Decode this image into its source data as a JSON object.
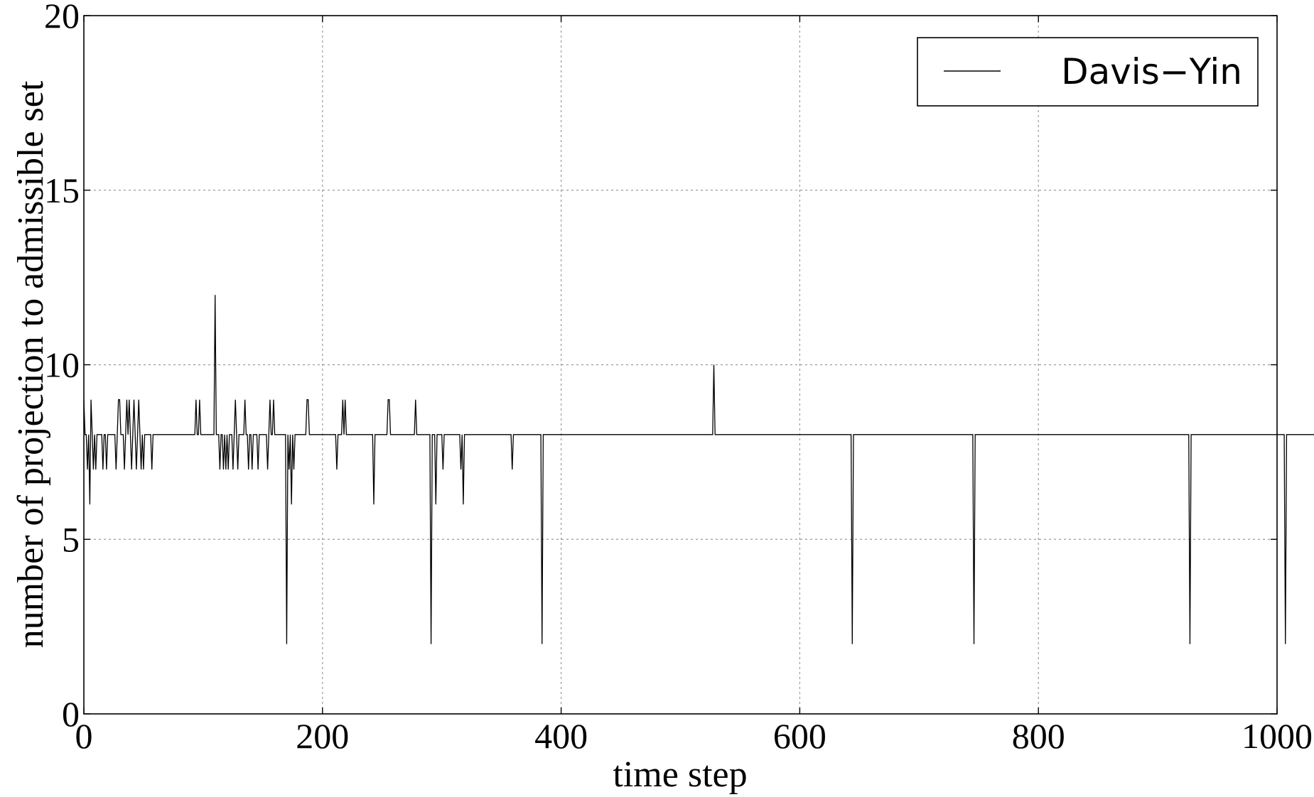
{
  "chart_data": {
    "type": "line",
    "title": "",
    "xlabel": "time step",
    "ylabel": "number of projection to admissible set",
    "xlim": [
      0,
      1000
    ],
    "ylim": [
      0,
      20
    ],
    "xticks": [
      0,
      200,
      400,
      600,
      800,
      1000
    ],
    "xtick_labels": [
      "0",
      "200",
      "400",
      "600",
      "800",
      "1000"
    ],
    "yticks": [
      0,
      5,
      10,
      15,
      20
    ],
    "ytick_labels": [
      "0",
      "5",
      "10",
      "15",
      "20"
    ],
    "grid": true,
    "legend": {
      "placement": "top-right",
      "entries": [
        "Davis−Yin"
      ]
    },
    "series": [
      {
        "name": "Davis−Yin",
        "color": "#000000",
        "x_start": 0,
        "x_step": 1,
        "values": [
          9,
          8,
          8,
          7,
          8,
          6,
          9,
          8,
          7,
          8,
          7,
          8,
          8,
          8,
          8,
          8,
          7,
          8,
          8,
          7,
          8,
          8,
          8,
          8,
          8,
          8,
          8,
          7,
          8,
          9,
          9,
          8,
          8,
          8,
          7,
          8,
          9,
          8,
          9,
          8,
          7,
          8,
          9,
          8,
          7,
          8,
          9,
          8,
          7,
          8,
          7,
          8,
          8,
          8,
          8,
          8,
          8,
          7,
          8,
          8,
          8,
          8,
          8,
          8,
          8,
          8,
          8,
          8,
          8,
          8,
          8,
          8,
          8,
          8,
          8,
          8,
          8,
          8,
          8,
          8,
          8,
          8,
          8,
          8,
          8,
          8,
          8,
          8,
          8,
          8,
          8,
          8,
          8,
          8,
          9,
          8,
          8,
          9,
          8,
          8,
          8,
          8,
          8,
          8,
          8,
          8,
          8,
          8,
          8,
          8,
          12,
          8,
          8,
          8,
          7,
          8,
          8,
          7,
          8,
          7,
          8,
          7,
          8,
          8,
          8,
          7,
          8,
          9,
          8,
          7,
          8,
          8,
          8,
          8,
          8,
          9,
          8,
          8,
          7,
          8,
          8,
          7,
          8,
          8,
          8,
          8,
          7,
          8,
          8,
          8,
          8,
          8,
          8,
          8,
          7,
          8,
          9,
          8,
          8,
          9,
          8,
          8,
          8,
          8,
          8,
          8,
          8,
          8,
          8,
          8,
          2,
          8,
          7,
          8,
          6,
          8,
          7,
          8,
          8,
          8,
          8,
          8,
          8,
          8,
          8,
          8,
          8,
          9,
          9,
          8,
          8,
          8,
          8,
          8,
          8,
          8,
          8,
          8,
          8,
          8,
          8,
          8,
          8,
          8,
          8,
          8,
          8,
          8,
          8,
          8,
          8,
          8,
          7,
          8,
          8,
          8,
          8,
          9,
          8,
          9,
          8,
          8,
          8,
          8,
          8,
          8,
          8,
          8,
          8,
          8,
          8,
          8,
          8,
          8,
          8,
          8,
          8,
          8,
          8,
          8,
          8,
          8,
          8,
          6,
          8,
          8,
          8,
          8,
          8,
          8,
          8,
          8,
          8,
          8,
          8,
          9,
          9,
          8,
          8,
          8,
          8,
          8,
          8,
          8,
          8,
          8,
          8,
          8,
          8,
          8,
          8,
          8,
          8,
          8,
          8,
          8,
          8,
          8,
          9,
          8,
          8,
          8,
          8,
          8,
          8,
          8,
          8,
          8,
          8,
          8,
          8,
          2,
          8,
          8,
          8,
          6,
          8,
          8,
          8,
          8,
          8,
          7,
          8,
          8,
          8,
          8,
          8,
          8,
          8,
          8,
          8,
          8,
          8,
          8,
          8,
          8,
          7,
          8,
          6,
          8,
          8,
          8,
          8,
          8,
          8,
          8,
          8,
          8,
          8,
          8,
          8,
          8,
          8,
          8,
          8,
          8,
          8,
          8,
          8,
          8,
          8,
          8,
          8,
          8,
          8,
          8,
          8,
          8,
          8,
          8,
          8,
          8,
          8,
          8,
          8,
          8,
          8,
          8,
          8,
          7,
          8,
          8,
          8,
          8,
          8,
          8,
          8,
          8,
          8,
          8,
          8,
          8,
          8,
          8,
          8,
          8,
          8,
          8,
          8,
          8,
          8,
          8,
          8,
          8,
          2,
          8,
          8,
          8,
          8,
          8,
          8,
          8,
          8,
          8,
          8,
          8,
          8,
          8,
          8,
          8,
          8,
          8,
          8,
          8,
          8,
          8,
          8,
          8,
          8,
          8,
          8,
          8,
          8,
          8,
          8,
          8,
          8,
          8,
          8,
          8,
          8,
          8,
          8,
          8,
          8,
          8,
          8,
          8,
          8,
          8,
          8,
          8,
          8,
          8,
          8,
          8,
          8,
          8,
          8,
          8,
          8,
          8,
          8,
          8,
          8,
          8,
          8,
          8,
          8,
          8,
          8,
          8,
          8,
          8,
          8,
          8,
          8,
          8,
          8,
          8,
          8,
          8,
          8,
          8,
          8,
          8,
          8,
          8,
          8,
          8,
          8,
          8,
          8,
          8,
          8,
          8,
          8,
          8,
          8,
          8,
          8,
          8,
          8,
          8,
          8,
          8,
          8,
          8,
          8,
          8,
          8,
          8,
          8,
          8,
          8,
          8,
          8,
          8,
          8,
          8,
          8,
          8,
          8,
          8,
          8,
          8,
          8,
          8,
          8,
          8,
          8,
          8,
          8,
          8,
          8,
          8,
          8,
          8,
          8,
          8,
          8,
          8,
          8,
          8,
          8,
          8,
          8,
          8,
          10,
          8,
          8,
          8,
          8,
          8,
          8,
          8,
          8,
          8,
          8,
          8,
          8,
          8,
          8,
          8,
          8,
          8,
          8,
          8,
          8,
          8,
          8,
          8,
          8,
          8,
          8,
          8,
          8,
          8,
          8,
          8,
          8,
          8,
          8,
          8,
          8,
          8,
          8,
          8,
          8,
          8,
          8,
          8,
          8,
          8,
          8,
          8,
          8,
          8,
          8,
          8,
          8,
          8,
          8,
          8,
          8,
          8,
          8,
          8,
          8,
          8,
          8,
          8,
          8,
          8,
          8,
          8,
          8,
          8,
          8,
          8,
          8,
          8,
          8,
          8,
          8,
          8,
          8,
          8,
          8,
          8,
          8,
          8,
          8,
          8,
          8,
          8,
          8,
          8,
          8,
          8,
          8,
          8,
          8,
          8,
          8,
          8,
          8,
          8,
          8,
          8,
          8,
          8,
          8,
          8,
          8,
          8,
          8,
          8,
          8,
          8,
          8,
          8,
          8,
          8,
          2,
          8,
          8,
          8,
          8,
          8,
          8,
          8,
          8,
          8,
          8,
          8,
          8,
          8,
          8,
          8,
          8,
          8,
          8,
          8,
          8,
          8,
          8,
          8,
          8,
          8,
          8,
          8,
          8,
          8,
          8,
          8,
          8,
          8,
          8,
          8,
          8,
          8,
          8,
          8,
          8,
          8,
          8,
          8,
          8,
          8,
          8,
          8,
          8,
          8,
          8,
          8,
          8,
          8,
          8,
          8,
          8,
          8,
          8,
          8,
          8,
          8,
          8,
          8,
          8,
          8,
          8,
          8,
          8,
          8,
          8,
          8,
          8,
          8,
          8,
          8,
          8,
          8,
          8,
          8,
          8,
          8,
          8,
          8,
          8,
          8,
          8,
          8,
          8,
          8,
          8,
          8,
          8,
          8,
          8,
          8,
          8,
          8,
          8,
          8,
          8,
          8,
          2,
          8,
          8,
          8,
          8,
          8,
          8,
          8,
          8,
          8,
          8,
          8,
          8,
          8,
          8,
          8,
          8,
          8,
          8,
          8,
          8,
          8,
          8,
          8,
          8,
          8,
          8,
          8,
          8,
          8,
          8,
          8,
          8,
          8,
          8,
          8,
          8,
          8,
          8,
          8,
          8,
          8,
          8,
          8,
          8,
          8,
          8,
          8,
          8,
          8,
          8,
          8,
          8,
          8,
          8,
          8,
          8,
          8,
          8,
          8,
          8,
          8,
          8,
          8,
          8,
          8,
          8,
          8,
          8,
          8,
          8,
          8,
          8,
          8,
          8,
          8,
          8,
          8,
          8,
          8,
          8,
          8,
          8,
          8,
          8,
          8,
          8,
          8,
          8,
          8,
          8,
          8,
          8,
          8,
          8,
          8,
          8,
          8,
          8,
          8,
          8,
          8,
          8,
          8,
          8,
          8,
          8,
          8,
          8,
          8,
          8,
          8,
          8,
          8,
          8,
          8,
          8,
          8,
          8,
          8,
          8,
          8,
          8,
          8,
          8,
          8,
          8,
          8,
          8,
          8,
          8,
          8,
          8,
          8,
          8,
          8,
          8,
          8,
          8,
          8,
          8,
          8,
          8,
          8,
          8,
          8,
          8,
          8,
          8,
          8,
          8,
          8,
          8,
          8,
          8,
          8,
          8,
          8,
          8,
          8,
          8,
          8,
          8,
          8,
          8,
          8,
          8,
          8,
          8,
          8,
          8,
          8,
          8,
          8,
          8,
          8,
          8,
          8,
          8,
          8,
          8,
          2,
          8,
          8,
          8,
          8,
          8,
          8,
          8,
          8,
          8,
          8,
          8,
          8,
          8,
          8,
          8,
          8,
          8,
          8,
          8,
          8,
          8,
          8,
          8,
          8,
          8,
          8,
          8,
          8,
          8,
          8,
          8,
          8,
          8,
          8,
          8,
          8,
          8,
          8,
          8,
          8,
          8,
          8,
          8,
          8,
          8,
          8,
          8,
          8,
          8,
          8,
          8,
          8,
          8,
          8,
          8,
          8,
          8,
          8,
          8,
          8,
          8,
          8,
          8,
          8,
          8,
          8,
          8,
          8,
          8,
          8,
          8,
          8,
          8,
          8,
          8,
          8,
          8,
          8,
          8,
          2,
          8,
          8,
          8,
          8,
          8,
          8,
          8,
          8,
          8,
          8,
          8,
          8,
          8,
          8,
          8,
          8,
          8,
          8,
          8,
          8,
          8,
          8,
          8,
          8,
          8,
          8,
          8,
          8,
          8,
          8,
          8,
          8,
          8,
          8,
          8,
          8,
          8,
          8,
          8,
          8,
          8,
          8,
          8,
          8,
          8,
          8,
          8,
          8,
          8,
          8,
          8,
          8,
          8,
          8
        ]
      }
    ]
  }
}
